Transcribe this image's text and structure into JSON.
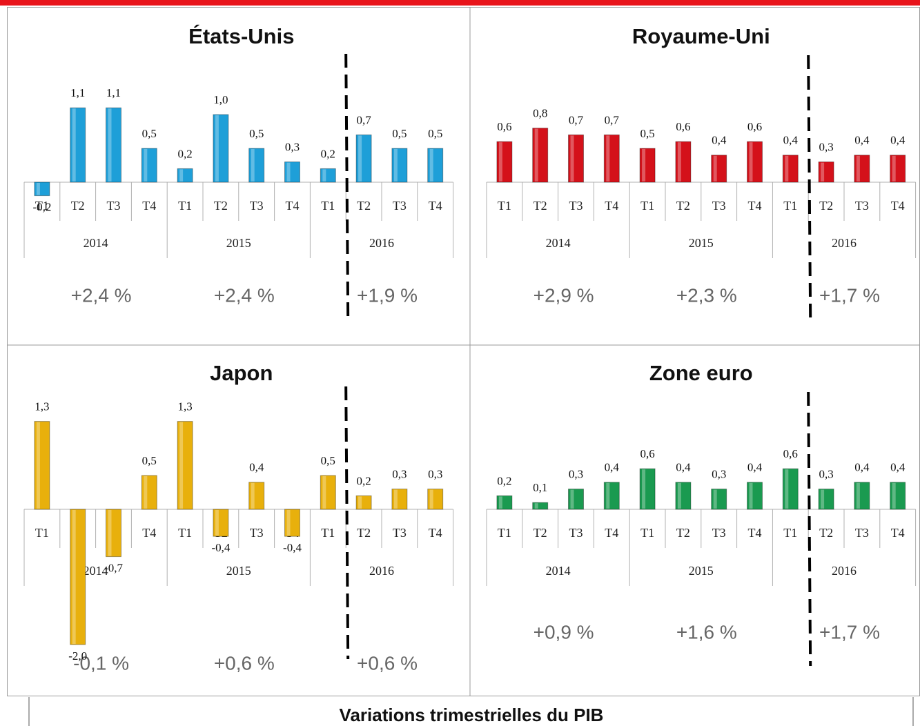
{
  "chart_data": [
    {
      "type": "bar",
      "title": "États-Unis",
      "color": "#1e9fd8",
      "categories": [
        "T1",
        "T2",
        "T3",
        "T4",
        "T1",
        "T2",
        "T3",
        "T4",
        "T1",
        "T2",
        "T3",
        "T4"
      ],
      "groups": [
        "2014",
        "2015",
        "2016"
      ],
      "group_labels": [
        "+2,4 %",
        "+2,4 %",
        "+1,9 %"
      ],
      "values": [
        -0.2,
        1.1,
        1.1,
        0.5,
        0.2,
        1.0,
        0.5,
        0.3,
        0.2,
        0.7,
        0.5,
        0.5
      ],
      "value_labels": [
        "-0,2",
        "1,1",
        "1,1",
        "0,5",
        "0,2",
        "1,0",
        "0,5",
        "0,3",
        "0,2",
        "0,7",
        "0,5",
        "0,5"
      ]
    },
    {
      "type": "bar",
      "title": "Royaume-Uni",
      "color": "#d4111a",
      "categories": [
        "T1",
        "T2",
        "T3",
        "T4",
        "T1",
        "T2",
        "T3",
        "T4",
        "T1",
        "T2",
        "T3",
        "T4"
      ],
      "groups": [
        "2014",
        "2015",
        "2016"
      ],
      "group_labels": [
        "+2,9 %",
        "+2,3 %",
        "+1,7 %"
      ],
      "values": [
        0.6,
        0.8,
        0.7,
        0.7,
        0.5,
        0.6,
        0.4,
        0.6,
        0.4,
        0.3,
        0.4,
        0.4
      ],
      "value_labels": [
        "0,6",
        "0,8",
        "0,7",
        "0,7",
        "0,5",
        "0,6",
        "0,4",
        "0,6",
        "0,4",
        "0,3",
        "0,4",
        "0,4"
      ]
    },
    {
      "type": "bar",
      "title": "Japon",
      "color": "#e8b00c",
      "categories": [
        "T1",
        "T2",
        "T3",
        "T4",
        "T1",
        "T2",
        "T3",
        "T4",
        "T1",
        "T2",
        "T3",
        "T4"
      ],
      "groups": [
        "2014",
        "2015",
        "2016"
      ],
      "group_labels": [
        "-0,1 %",
        "+0,6 %",
        "+0,6 %"
      ],
      "values": [
        1.3,
        -2.0,
        -0.7,
        0.5,
        1.3,
        -0.4,
        0.4,
        -0.4,
        0.5,
        0.2,
        0.3,
        0.3
      ],
      "value_labels": [
        "1,3",
        "-2,0",
        "-0,7",
        "0,5",
        "1,3",
        "-0,4",
        "0,4",
        "-0,4",
        "0,5",
        "0,2",
        "0,3",
        "0,3"
      ]
    },
    {
      "type": "bar",
      "title": "Zone euro",
      "color": "#1a9a50",
      "categories": [
        "T1",
        "T2",
        "T3",
        "T4",
        "T1",
        "T2",
        "T3",
        "T4",
        "T1",
        "T2",
        "T3",
        "T4"
      ],
      "groups": [
        "2014",
        "2015",
        "2016"
      ],
      "group_labels": [
        "+0,9 %",
        "+1,6 %",
        "+1,7 %"
      ],
      "values": [
        0.2,
        0.1,
        0.3,
        0.4,
        0.6,
        0.4,
        0.3,
        0.4,
        0.6,
        0.3,
        0.4,
        0.4
      ],
      "value_labels": [
        "0,2",
        "0,1",
        "0,3",
        "0,4",
        "0,6",
        "0,4",
        "0,3",
        "0,4",
        "0,6",
        "0,3",
        "0,4",
        "0,4"
      ]
    }
  ],
  "caption": "Variations trimestrielles du PIB"
}
